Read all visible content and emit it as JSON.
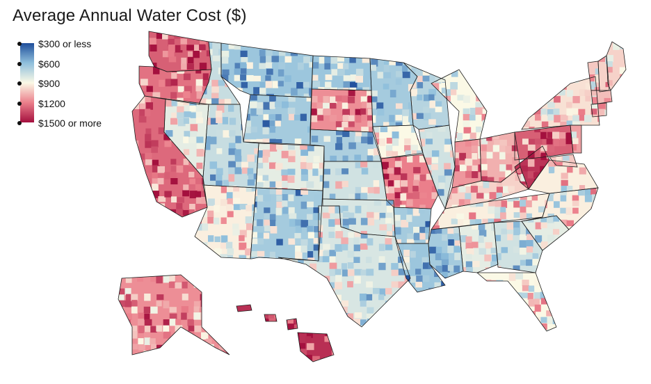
{
  "title": "Average Annual Water Cost ($)",
  "legend": {
    "labels": [
      "$300 or less",
      "$600",
      "$900",
      "$1200",
      "$1500 or more"
    ],
    "colors": [
      "#1f4e9b",
      "#8fbfdc",
      "#fbf9e6",
      "#eb7f8b",
      "#a4103e"
    ]
  },
  "map": {
    "region": "United States",
    "state_levels": [
      {
        "state": "WA",
        "level": 0.82
      },
      {
        "state": "OR",
        "level": 0.78
      },
      {
        "state": "CA",
        "level": 0.8
      },
      {
        "state": "NV",
        "level": 0.45
      },
      {
        "state": "ID",
        "level": 0.38
      },
      {
        "state": "MT",
        "level": 0.28
      },
      {
        "state": "WY",
        "level": 0.3
      },
      {
        "state": "UT",
        "level": 0.38
      },
      {
        "state": "AZ",
        "level": 0.52
      },
      {
        "state": "CO",
        "level": 0.45
      },
      {
        "state": "NM",
        "level": 0.3
      },
      {
        "state": "ND",
        "level": 0.28
      },
      {
        "state": "SD",
        "level": 0.72
      },
      {
        "state": "NE",
        "level": 0.32
      },
      {
        "state": "KS",
        "level": 0.4
      },
      {
        "state": "OK",
        "level": 0.42
      },
      {
        "state": "TX",
        "level": 0.42
      },
      {
        "state": "MN",
        "level": 0.3
      },
      {
        "state": "IA",
        "level": 0.5
      },
      {
        "state": "MO",
        "level": 0.75
      },
      {
        "state": "AR",
        "level": 0.3
      },
      {
        "state": "LA",
        "level": 0.28
      },
      {
        "state": "WI",
        "level": 0.34
      },
      {
        "state": "IL",
        "level": 0.4
      },
      {
        "state": "MI",
        "level": 0.5
      },
      {
        "state": "IN",
        "level": 0.7
      },
      {
        "state": "OH",
        "level": 0.65
      },
      {
        "state": "KY",
        "level": 0.58
      },
      {
        "state": "TN",
        "level": 0.52
      },
      {
        "state": "MS",
        "level": 0.3
      },
      {
        "state": "AL",
        "level": 0.45
      },
      {
        "state": "GA",
        "level": 0.4
      },
      {
        "state": "FL",
        "level": 0.5
      },
      {
        "state": "SC",
        "level": 0.45
      },
      {
        "state": "NC",
        "level": 0.52
      },
      {
        "state": "VA",
        "level": 0.52
      },
      {
        "state": "WV",
        "level": 0.92
      },
      {
        "state": "PA",
        "level": 0.82
      },
      {
        "state": "NY",
        "level": 0.55
      },
      {
        "state": "VT",
        "level": 0.6
      },
      {
        "state": "NH",
        "level": 0.58
      },
      {
        "state": "ME",
        "level": 0.58
      },
      {
        "state": "MA",
        "level": 0.62
      },
      {
        "state": "CT",
        "level": 0.62
      },
      {
        "state": "NJ",
        "level": 0.68
      },
      {
        "state": "MD",
        "level": 0.6
      },
      {
        "state": "AK",
        "level": 0.72
      },
      {
        "state": "HI",
        "level": 0.93
      }
    ]
  }
}
